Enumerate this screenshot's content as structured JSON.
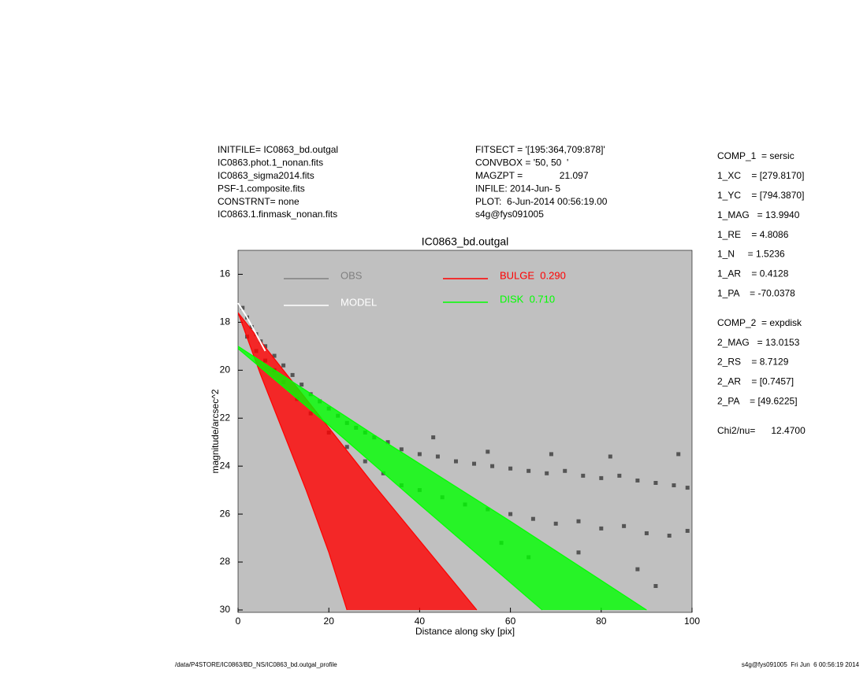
{
  "header": {
    "left": [
      "INITFILE= IC0863_bd.outgal",
      "IC0863.phot.1_nonan.fits",
      "IC0863_sigma2014.fits",
      "PSF-1.composite.fits",
      "CONSTRNT= none",
      "IC0863.1.finmask_nonan.fits"
    ],
    "middle": [
      "FITSECT = '[195:364,709:878]'",
      "CONVBOX = '50, 50  '",
      "MAGZPT =              21.097",
      "INFILE: 2014-Jun- 5",
      "PLOT:  6-Jun-2014 00:56:19.00",
      "s4g@fys091005"
    ]
  },
  "params": [
    [
      "COMP_1  = sersic",
      "1_XC    = [279.8170]",
      "1_YC    = [794.3870]",
      "1_MAG   = 13.9940",
      "1_RE    = 4.8086",
      "1_N     = 1.5236",
      "1_AR    = 0.4128",
      "1_PA    = -70.0378"
    ],
    [
      "COMP_2  = expdisk",
      "2_MAG   = 13.0153",
      "2_RS    = 8.7129",
      "2_AR    = [0.7457]",
      "2_PA    = [49.6225]"
    ],
    [
      "Chi2/nu=      12.4700"
    ]
  ],
  "footer": {
    "left": "/data/P4STORE/IC0863/BD_NS/IC0863_bd.outgal_profile",
    "right": "s4g@fys091005  Fri Jun  6 00:56:19 2014"
  },
  "chart_data": {
    "type": "scatter",
    "title": "IC0863_bd.outgal",
    "x_label": "Distance along sky [pix]",
    "y_label": "magnitude/arcsec^2",
    "xlim": [
      0,
      100
    ],
    "xticks": [
      0,
      20,
      40,
      60,
      80,
      100
    ],
    "ylim": [
      30.1,
      15
    ],
    "yticks": [
      16,
      18,
      20,
      22,
      24,
      26,
      28,
      30
    ],
    "background": "#c0c0c0",
    "series": [
      {
        "name": "OBS",
        "kind": "points",
        "color": "#555555",
        "x": [
          1,
          2,
          3,
          4,
          5,
          6,
          8,
          10,
          12,
          14,
          16,
          18,
          20,
          22,
          24,
          26,
          28,
          30,
          33,
          36,
          40,
          44,
          48,
          52,
          56,
          60,
          64,
          68,
          72,
          76,
          80,
          84,
          88,
          92,
          96,
          99,
          2,
          4,
          6,
          8,
          10,
          13,
          16,
          20,
          24,
          28,
          32,
          36,
          40,
          45,
          50,
          55,
          60,
          65,
          70,
          75,
          80,
          85,
          90,
          95,
          99,
          43,
          55,
          69,
          82,
          97,
          75,
          88,
          92,
          64,
          58
        ],
        "values": [
          17.4,
          17.8,
          18.2,
          18.5,
          18.8,
          19.0,
          19.4,
          19.8,
          20.2,
          20.6,
          21.0,
          21.3,
          21.6,
          21.9,
          22.2,
          22.4,
          22.6,
          22.8,
          23.0,
          23.3,
          23.5,
          23.6,
          23.8,
          23.9,
          24.0,
          24.1,
          24.2,
          24.3,
          24.2,
          24.4,
          24.5,
          24.4,
          24.6,
          24.7,
          24.8,
          24.9,
          18.6,
          19.2,
          19.6,
          20.0,
          20.5,
          21.2,
          21.8,
          22.6,
          23.2,
          23.8,
          24.3,
          24.8,
          25.0,
          25.3,
          25.6,
          25.8,
          26.0,
          26.2,
          26.4,
          26.3,
          26.6,
          26.5,
          26.8,
          26.9,
          26.7,
          22.8,
          23.4,
          23.5,
          23.6,
          23.5,
          27.6,
          28.3,
          29.0,
          27.8,
          27.2
        ]
      },
      {
        "name": "MODEL",
        "kind": "line",
        "color": "#ffffff",
        "x": [
          0,
          2,
          4,
          6
        ],
        "values": [
          17.2,
          17.8,
          18.5,
          19.2
        ]
      },
      {
        "name": "BULGE  0.290",
        "kind": "band",
        "color": "#ff0000",
        "upper": {
          "x": [
            0,
            10,
            20,
            30,
            40,
            52.6
          ],
          "values": [
            17.6,
            20.0,
            22.4,
            24.8,
            27.1,
            30
          ]
        },
        "lower": {
          "x": [
            0,
            5,
            10,
            15,
            20,
            24
          ],
          "values": [
            17.6,
            20.2,
            22.6,
            25.0,
            27.6,
            30
          ]
        }
      },
      {
        "name": "DISK  0.710",
        "kind": "band",
        "color": "#00ff00",
        "upper": {
          "x": [
            0,
            30,
            60,
            90
          ],
          "values": [
            19.0,
            22.7,
            26.3,
            30
          ]
        },
        "lower": {
          "x": [
            0,
            20,
            40,
            67
          ],
          "values": [
            19.1,
            22.3,
            25.6,
            30
          ]
        }
      }
    ]
  }
}
